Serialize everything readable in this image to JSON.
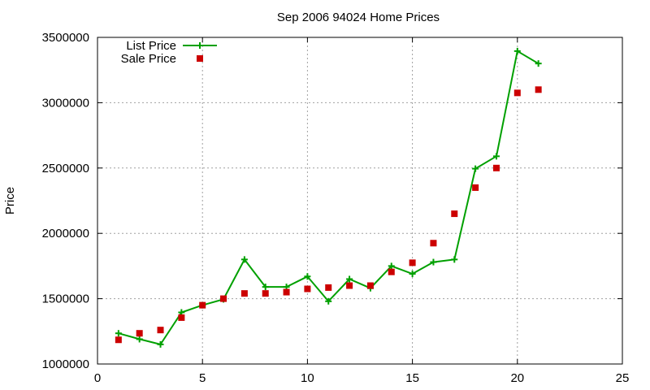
{
  "chart_data": {
    "type": "line",
    "title": "Sep 2006 94024 Home Prices",
    "xlabel": "",
    "ylabel": "Price",
    "xlim": [
      0,
      25
    ],
    "ylim": [
      1000000,
      3500000
    ],
    "x_ticks": [
      0,
      5,
      10,
      15,
      20,
      25
    ],
    "y_ticks": [
      1000000,
      1500000,
      2000000,
      2500000,
      3000000,
      3500000
    ],
    "grid": true,
    "legend_position": "top-left",
    "x": [
      1,
      2,
      3,
      4,
      5,
      6,
      7,
      8,
      9,
      10,
      11,
      12,
      13,
      14,
      15,
      16,
      17,
      18,
      19,
      20,
      21
    ],
    "series": [
      {
        "name": "List Price",
        "style": "line-with-plus-markers",
        "color": "#00a000",
        "values": [
          1235000,
          1190000,
          1150000,
          1395000,
          1450000,
          1495000,
          1800000,
          1590000,
          1590000,
          1670000,
          1480000,
          1650000,
          1580000,
          1750000,
          1690000,
          1780000,
          1800000,
          2495000,
          2590000,
          3395000,
          3300000
        ]
      },
      {
        "name": "Sale Price",
        "style": "square-markers",
        "color": "#cc0000",
        "values": [
          1185000,
          1235000,
          1260000,
          1355000,
          1450000,
          1500000,
          1540000,
          1540000,
          1550000,
          1575000,
          1585000,
          1600000,
          1600000,
          1705000,
          1775000,
          1925000,
          2150000,
          2350000,
          2500000,
          3075000,
          3100000
        ]
      }
    ]
  }
}
